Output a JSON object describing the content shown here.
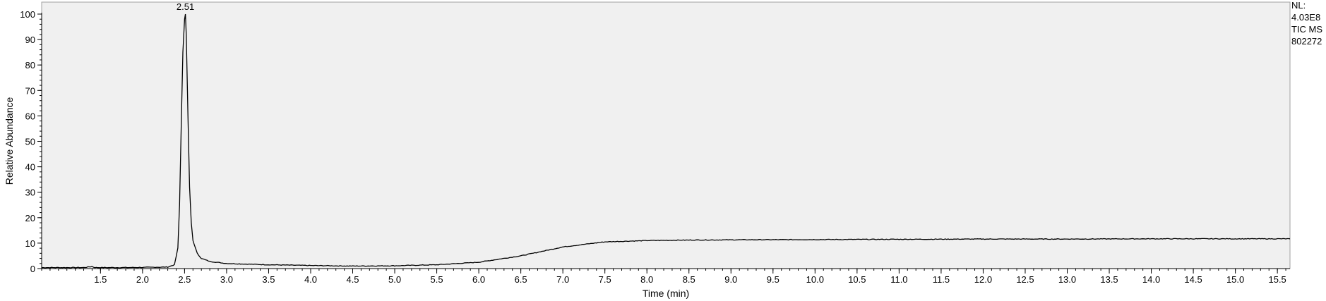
{
  "chart_data": {
    "type": "line",
    "xlabel": "Time (min)",
    "ylabel": "Relative Abundance",
    "xlim": [
      0.8,
      15.65
    ],
    "ylim": [
      0,
      100
    ],
    "x_ticks": [
      1.5,
      2.0,
      2.5,
      3.0,
      3.5,
      4.0,
      4.5,
      5.0,
      5.5,
      6.0,
      6.5,
      7.0,
      7.5,
      8.0,
      8.5,
      9.0,
      9.5,
      10.0,
      10.5,
      11.0,
      11.5,
      12.0,
      12.5,
      13.0,
      13.5,
      14.0,
      14.5,
      15.0,
      15.5
    ],
    "x_tick_labels": [
      "1.5",
      "2.0",
      "2.5",
      "3.0",
      "3.5",
      "4.0",
      "4.5",
      "5.0",
      "5.5",
      "6.0",
      "6.5",
      "7.0",
      "7.5",
      "8.0",
      "8.5",
      "9.0",
      "9.5",
      "10.0",
      "10.5",
      "11.0",
      "11.5",
      "12.0",
      "12.5",
      "13.0",
      "13.5",
      "14.0",
      "14.5",
      "15.0",
      "15.5"
    ],
    "y_ticks": [
      0,
      10,
      20,
      30,
      40,
      50,
      60,
      70,
      80,
      90,
      100
    ],
    "y_tick_labels": [
      "0",
      "10",
      "20",
      "30",
      "40",
      "50",
      "60",
      "70",
      "80",
      "90",
      "100"
    ],
    "peak_annotations": [
      {
        "x": 2.51,
        "y": 100,
        "label": "2.51"
      }
    ],
    "info_lines": [
      "NL:",
      "4.03E8",
      "TIC  MS",
      "802272"
    ],
    "series": [
      {
        "x": [
          0.8,
          1.0,
          1.3,
          1.4,
          1.42,
          1.45,
          1.5,
          1.8,
          2.1,
          2.3,
          2.38,
          2.42,
          2.44,
          2.46,
          2.48,
          2.5,
          2.51,
          2.52,
          2.54,
          2.56,
          2.58,
          2.6,
          2.65,
          2.7,
          2.8,
          3.0,
          3.5,
          4.0,
          4.5,
          5.0,
          5.5,
          6.0,
          6.5,
          7.0,
          7.5,
          8.0,
          8.5,
          9.0,
          10.0,
          11.0,
          12.0,
          13.0,
          14.0,
          15.0,
          15.65
        ],
        "y": [
          0.4,
          0.4,
          0.4,
          0.8,
          0.5,
          0.4,
          0.4,
          0.4,
          0.5,
          0.6,
          1.5,
          8,
          25,
          55,
          85,
          98,
          100,
          92,
          60,
          32,
          18,
          11,
          6,
          4,
          2.8,
          2,
          1.5,
          1.2,
          1.0,
          1.1,
          1.5,
          2.5,
          5,
          8.5,
          10.5,
          11,
          11.2,
          11.3,
          11.4,
          11.5,
          11.6,
          11.6,
          11.7,
          11.7,
          11.7
        ]
      }
    ],
    "colors": {
      "plot_background": "#f0f0f0",
      "line": "#000000",
      "axis": "#000000",
      "frame": "#a0a0a0"
    }
  }
}
